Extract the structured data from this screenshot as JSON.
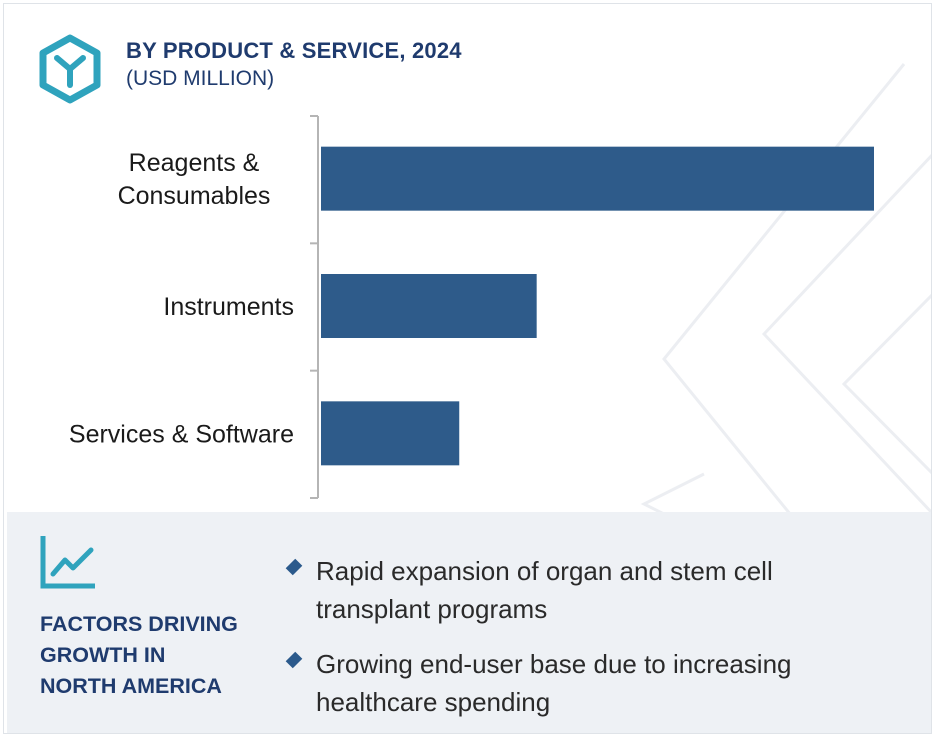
{
  "header": {
    "title": "BY PRODUCT & SERVICE, 2024",
    "subtitle": "(USD MILLION)"
  },
  "colors": {
    "bar": "#2e5b8a",
    "title": "#1f3b6e",
    "accent_icon": "#2fa3bd",
    "panel_bg": "#eef1f5"
  },
  "chart_data": {
    "type": "bar",
    "orientation": "horizontal",
    "title": "BY PRODUCT & SERVICE, 2024",
    "subtitle": "(USD MILLION)",
    "categories": [
      "Reagents & Consumables",
      "Instruments",
      "Services & Software"
    ],
    "category_lines": [
      [
        "Reagents &",
        "Consumables"
      ],
      [
        "Instruments"
      ],
      [
        "Services & Software"
      ]
    ],
    "values": [
      100,
      39,
      25
    ],
    "xlim": [
      0,
      100
    ],
    "grid": false,
    "legend": "none"
  },
  "factors": {
    "title_lines": [
      "FACTORS DRIVING",
      "GROWTH IN",
      "NORTH AMERICA"
    ],
    "icon": "trend-chart-icon",
    "bullets": [
      "Rapid expansion of organ and stem cell transplant programs",
      "Growing end-user base due to increasing healthcare spending"
    ]
  },
  "logo_icon": "hexagon-y-logo-icon"
}
